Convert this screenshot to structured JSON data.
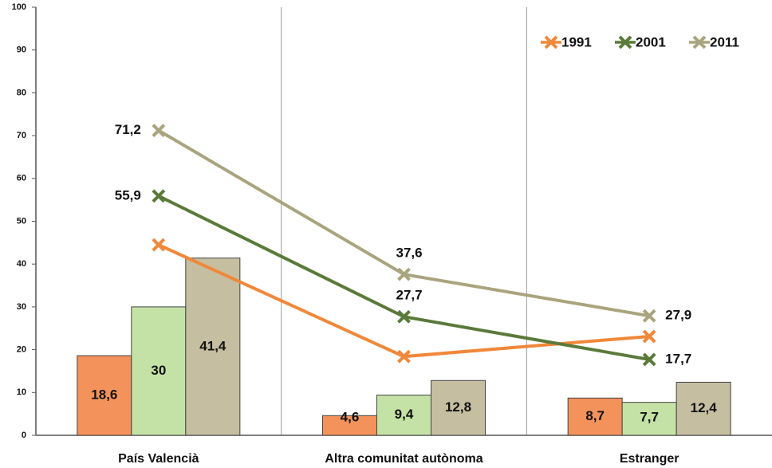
{
  "chart_data": {
    "type": "bar-line",
    "categories": [
      "País Valencià",
      "Altra comunitat autònoma",
      "Estranger"
    ],
    "ylim": [
      0,
      100
    ],
    "yticks": [
      0,
      10,
      20,
      30,
      40,
      50,
      60,
      70,
      80,
      90,
      100
    ],
    "legend": "top-right",
    "series": [
      {
        "name": "1991",
        "color": "#f0883a",
        "bar_color": "#f4925c",
        "values": [
          18.6,
          4.6,
          8.7
        ],
        "value_labels": [
          "18,6",
          "4,6",
          "8,7"
        ],
        "line_values": [
          44.5,
          18.4,
          23.1
        ]
      },
      {
        "name": "2001",
        "color": "#5a7a3a",
        "bar_color": "#c5e2a6",
        "values": [
          30,
          9.4,
          7.7
        ],
        "value_labels": [
          "30",
          "9,4",
          "7,7"
        ],
        "line_values": [
          55.9,
          27.7,
          17.7
        ],
        "line_value_labels": [
          "55,9",
          "27,7",
          "17,7"
        ]
      },
      {
        "name": "2011",
        "color": "#aaa47e",
        "bar_color": "#c6bea0",
        "values": [
          41.4,
          12.8,
          12.4
        ],
        "value_labels": [
          "41,4",
          "12,8",
          "12,4"
        ],
        "line_values": [
          71.2,
          37.6,
          27.9
        ],
        "line_value_labels": [
          "71,2",
          "37,6",
          "27,9"
        ]
      }
    ]
  }
}
